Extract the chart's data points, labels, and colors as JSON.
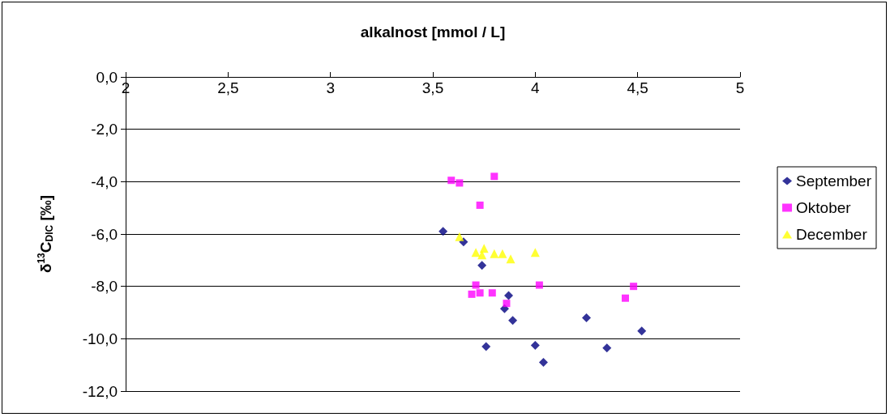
{
  "chart_data": {
    "type": "scatter",
    "xlabel": "alkalnost [mmol / L]",
    "ylabel": "δ$^{13}$C$_{DIC}$ [‰]",
    "xlim": [
      2,
      5
    ],
    "xticks": [
      2,
      {
        "value": 2.5,
        "label": "2,5"
      },
      3,
      {
        "value": 3.5,
        "label": "3,5"
      },
      4,
      {
        "value": 4.5,
        "label": "4,5"
      },
      5
    ],
    "ylim": [
      -12,
      0
    ],
    "yticks": [
      {
        "value": -12,
        "label": "-12,0"
      },
      {
        "value": -10,
        "label": "-10,0"
      },
      {
        "value": -8,
        "label": "-8,0"
      },
      {
        "value": -6,
        "label": "-6,0"
      },
      {
        "value": -4,
        "label": "-4,0"
      },
      {
        "value": -2,
        "label": "-2,0"
      },
      {
        "value": 0,
        "label": "0,0"
      }
    ],
    "grid": "y",
    "legend": "right",
    "series": [
      {
        "name": "September",
        "color": "#000080",
        "marker": "diamond",
        "x": [
          3.55,
          3.65,
          3.74,
          3.87,
          3.85,
          3.89,
          3.76,
          4.0,
          4.04,
          4.25,
          4.35,
          4.52
        ],
        "values": [
          -5.9,
          -6.3,
          -7.2,
          -8.35,
          -8.85,
          -9.3,
          -10.3,
          -10.25,
          -10.9,
          -9.2,
          -10.35,
          -9.7
        ]
      },
      {
        "name": "Oktober",
        "color": "#ff00ff",
        "marker": "square",
        "x": [
          3.59,
          3.63,
          3.8,
          3.73,
          3.71,
          3.69,
          3.73,
          3.79,
          3.86,
          4.02,
          4.44,
          4.48
        ],
        "values": [
          -3.95,
          -4.05,
          -3.8,
          -4.9,
          -7.95,
          -8.3,
          -8.25,
          -8.25,
          -8.65,
          -7.95,
          -8.45,
          -8.0
        ]
      },
      {
        "name": "December",
        "color": "#ffff00",
        "marker": "triangle",
        "x": [
          3.63,
          3.71,
          3.74,
          3.75,
          3.8,
          3.84,
          3.88,
          4.0
        ],
        "values": [
          -6.1,
          -6.7,
          -6.8,
          -6.55,
          -6.75,
          -6.75,
          -6.95,
          -6.7
        ]
      }
    ]
  }
}
